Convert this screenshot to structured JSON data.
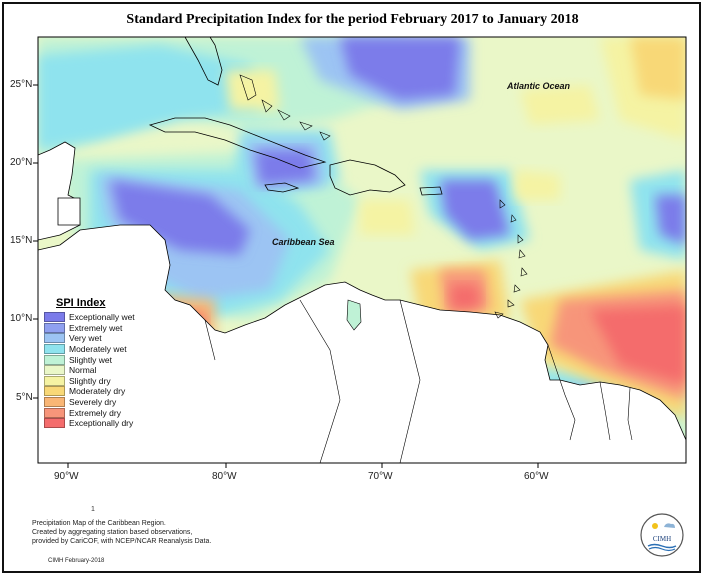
{
  "title": "Standard Precipitation Index for the period February 2017 to January 2018",
  "labels": {
    "atlantic": "Atlantic Ocean",
    "caribbean": "Caribbean Sea"
  },
  "axes": {
    "x_ticks": [
      "90°W",
      "80°W",
      "70°W",
      "60°W"
    ],
    "y_ticks": [
      "25°N",
      "20°N",
      "15°N",
      "10°N",
      "5°N"
    ]
  },
  "legend": {
    "title": "SPI Index",
    "items": [
      {
        "label": "Exceptionally wet",
        "color": "#7b7bea"
      },
      {
        "label": "Extremely wet",
        "color": "#8fa0f0"
      },
      {
        "label": "Very wet",
        "color": "#9cc4f3"
      },
      {
        "label": "Moderately wet",
        "color": "#8fe3ee"
      },
      {
        "label": "Slightly wet",
        "color": "#bff2d6"
      },
      {
        "label": "Normal",
        "color": "#eaf7c8"
      },
      {
        "label": "Slightly dry",
        "color": "#f5f3a3"
      },
      {
        "label": "Moderately dry",
        "color": "#f8d877"
      },
      {
        "label": "Severely dry",
        "color": "#f9b675"
      },
      {
        "label": "Extremely dry",
        "color": "#f7957a"
      },
      {
        "label": "Exceptionally dry",
        "color": "#f46c6c"
      }
    ]
  },
  "caption": {
    "line1": "Precipitation Map of the Caribbean Region.",
    "line2": "Created by aggregating station based observations,",
    "line3": "provided by CariCOF, with NCEP/NCAR Reanalysis Data."
  },
  "footer": "CIMH February-2018",
  "page_mark": "1",
  "logo_text": "CIMH"
}
